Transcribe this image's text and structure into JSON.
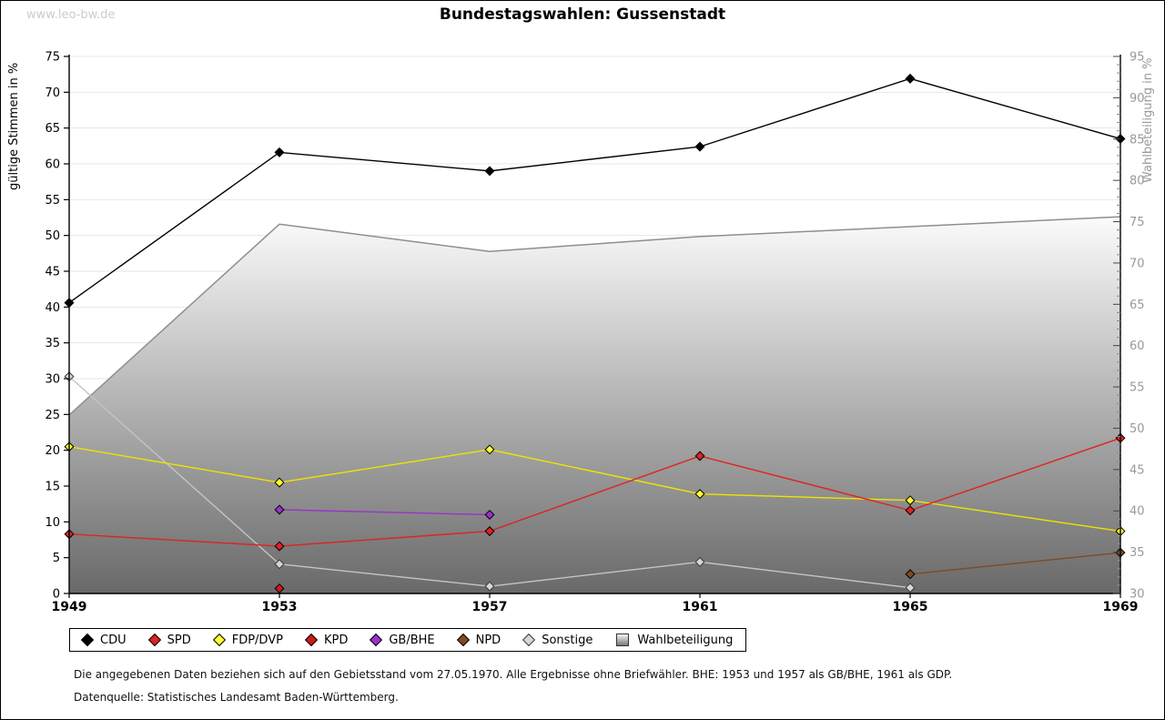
{
  "page": {
    "watermark": "www.leo-bw.de"
  },
  "chart": {
    "title": "Bundestagswahlen: Gussenstadt"
  },
  "chart_data": {
    "type": "line",
    "title": "Bundestagswahlen: Gussenstadt",
    "x": [
      1949,
      1953,
      1957,
      1961,
      1965,
      1969
    ],
    "left_axis": {
      "label": "gültige Stimmen in %",
      "min": 0,
      "max": 75,
      "tick_step": 5
    },
    "right_axis": {
      "label": "Wahlbeteiligung in %",
      "min": 30,
      "max": 95,
      "tick_step": 5,
      "minor_step": 1
    },
    "grid": true,
    "legend_position": "bottom",
    "series": [
      {
        "name": "CDU",
        "axis": "left",
        "style": "line",
        "color": "#000000",
        "marker_fill": "#000000",
        "values": [
          40.6,
          61.6,
          59.0,
          62.4,
          71.9,
          63.5
        ]
      },
      {
        "name": "SPD",
        "axis": "left",
        "style": "line",
        "color": "#dd2323",
        "marker_fill": "#dd2323",
        "values": [
          8.3,
          6.6,
          8.7,
          19.2,
          11.6,
          21.7
        ]
      },
      {
        "name": "FDP/DVP",
        "axis": "left",
        "style": "line",
        "color": "#efe400",
        "marker_fill": "#ffff33",
        "values": [
          20.5,
          15.5,
          20.1,
          13.9,
          13.0,
          8.7
        ]
      },
      {
        "name": "KPD",
        "axis": "left",
        "style": "line",
        "color": "#bb1515",
        "marker_fill": "#cc1a1a",
        "values": [
          null,
          0.7,
          null,
          null,
          null,
          null
        ]
      },
      {
        "name": "GB/BHE",
        "axis": "left",
        "style": "line",
        "color": "#9932cc",
        "marker_fill": "#9932cc",
        "values": [
          null,
          11.7,
          11.0,
          null,
          null,
          null
        ]
      },
      {
        "name": "NPD",
        "axis": "left",
        "style": "line",
        "color": "#7d4b28",
        "marker_fill": "#7d4b28",
        "values": [
          null,
          null,
          null,
          null,
          2.7,
          5.7
        ]
      },
      {
        "name": "Sonstige",
        "axis": "left",
        "style": "line",
        "color": "#c4c4c4",
        "marker_fill": "#d6d6d6",
        "marker_stroke": "#3a3a3a",
        "values": [
          30.3,
          4.1,
          1.0,
          4.4,
          0.8,
          null
        ]
      },
      {
        "name": "Wahlbeteiligung",
        "axis": "right",
        "style": "area",
        "color": "#8e8e8e",
        "fill_top": "#fbfbfb",
        "fill_bottom": "#696969",
        "values": [
          51.6,
          74.7,
          71.4,
          73.2,
          74.4,
          75.6
        ]
      }
    ]
  },
  "footer": {
    "note1": "Die angegebenen Daten beziehen sich auf den Gebietsstand vom 27.05.1970. Alle Ergebnisse ohne Briefwähler. BHE: 1953 und 1957 als GB/BHE, 1961 als GDP.",
    "note2": "Datenquelle: Statistisches Landesamt Baden-Württemberg."
  }
}
